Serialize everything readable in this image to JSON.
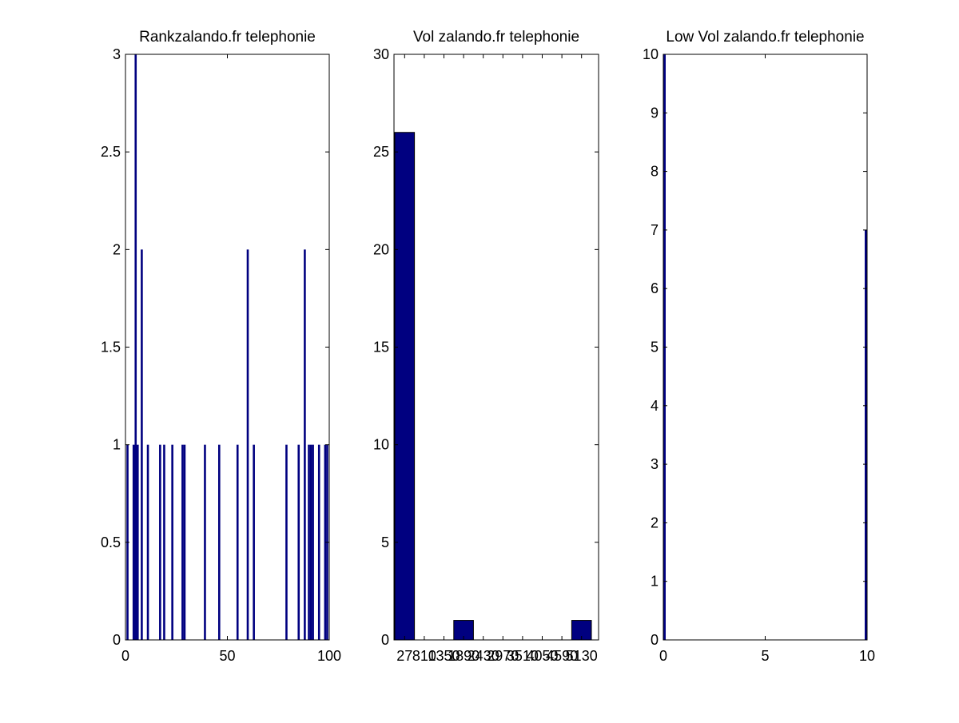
{
  "chart_data": [
    {
      "type": "bar",
      "title": "Rankzalando.fr telephonie",
      "xlabel": "",
      "ylabel": "",
      "xlim": [
        0,
        100
      ],
      "ylim": [
        0,
        3
      ],
      "xticks": [
        "0",
        "50",
        "100"
      ],
      "yticks": [
        "0",
        "0.5",
        "1",
        "1.5",
        "2",
        "2.5",
        "3"
      ],
      "x": [
        1,
        4,
        5,
        6,
        8,
        11,
        17,
        19,
        23,
        28,
        29,
        39,
        46,
        55,
        60,
        63,
        79,
        85,
        88,
        90,
        91,
        92,
        95,
        98,
        99
      ],
      "values": [
        1,
        1,
        3,
        1,
        2,
        1,
        1,
        1,
        1,
        1,
        1,
        1,
        1,
        1,
        2,
        1,
        1,
        1,
        2,
        1,
        1,
        1,
        1,
        1,
        1
      ],
      "bar_color": "#000080",
      "grid": false,
      "legend": "none"
    },
    {
      "type": "bar",
      "title": "Vol zalando.fr telephonie",
      "xlabel": "",
      "ylabel": "",
      "ylim": [
        0,
        30
      ],
      "yticks": [
        "0",
        "5",
        "10",
        "15",
        "20",
        "25",
        "30"
      ],
      "categories": [
        "27",
        "810",
        "1350",
        "1890",
        "2430",
        "2970",
        "3510",
        "4050",
        "4590",
        "5130"
      ],
      "tick_labels": [
        "27",
        "810",
        "1350",
        "1890",
        "2430",
        "2970",
        "3510",
        "4050",
        "4590",
        "5130"
      ],
      "values": [
        26,
        0,
        0,
        1,
        0,
        0,
        0,
        0,
        0,
        1
      ],
      "bar_color": "#000080",
      "grid": false,
      "legend": "none"
    },
    {
      "type": "bar",
      "title": "Low Vol zalando.fr telephonie",
      "xlabel": "",
      "ylabel": "",
      "xlim": [
        0,
        10
      ],
      "ylim": [
        0,
        10
      ],
      "xticks": [
        "0",
        "5",
        "10"
      ],
      "yticks": [
        "0",
        "1",
        "2",
        "3",
        "4",
        "5",
        "6",
        "7",
        "8",
        "9",
        "10"
      ],
      "x": [
        0,
        10
      ],
      "values": [
        10,
        7
      ],
      "bar_color": "#000080",
      "grid": false,
      "legend": "none"
    }
  ]
}
